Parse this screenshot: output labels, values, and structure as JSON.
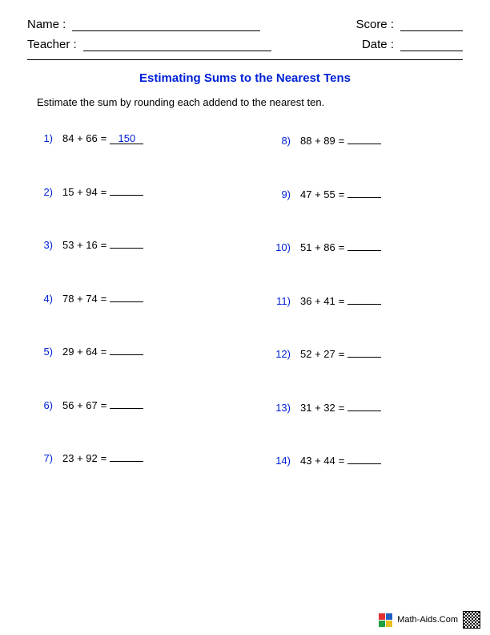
{
  "colors": {
    "title": "#0021d6",
    "problem_number": "#0021d6",
    "answer": "#0021d6",
    "text": "#000000"
  },
  "header": {
    "name_label": "Name :",
    "teacher_label": "Teacher :",
    "score_label": "Score :",
    "date_label": "Date :"
  },
  "title": "Estimating Sums to the Nearest Tens",
  "instructions": "Estimate the sum by rounding each addend to the nearest ten.",
  "paren": ")",
  "equals": "=",
  "problems_left": [
    {
      "n": "1",
      "a": "84",
      "b": "66",
      "ans": "150"
    },
    {
      "n": "2",
      "a": "15",
      "b": "94",
      "ans": ""
    },
    {
      "n": "3",
      "a": "53",
      "b": "16",
      "ans": ""
    },
    {
      "n": "4",
      "a": "78",
      "b": "74",
      "ans": ""
    },
    {
      "n": "5",
      "a": "29",
      "b": "64",
      "ans": ""
    },
    {
      "n": "6",
      "a": "56",
      "b": "67",
      "ans": ""
    },
    {
      "n": "7",
      "a": "23",
      "b": "92",
      "ans": ""
    }
  ],
  "problems_right": [
    {
      "n": "8",
      "a": "88",
      "b": "89",
      "ans": ""
    },
    {
      "n": "9",
      "a": "47",
      "b": "55",
      "ans": ""
    },
    {
      "n": "10",
      "a": "51",
      "b": "86",
      "ans": ""
    },
    {
      "n": "11",
      "a": "36",
      "b": "41",
      "ans": ""
    },
    {
      "n": "12",
      "a": "52",
      "b": "27",
      "ans": ""
    },
    {
      "n": "13",
      "a": "31",
      "b": "32",
      "ans": ""
    },
    {
      "n": "14",
      "a": "43",
      "b": "44",
      "ans": ""
    }
  ],
  "footer": {
    "site": "Math-Aids.Com",
    "icon_colors": [
      "#e03030",
      "#2060c0",
      "#20a040",
      "#e8c020"
    ]
  }
}
